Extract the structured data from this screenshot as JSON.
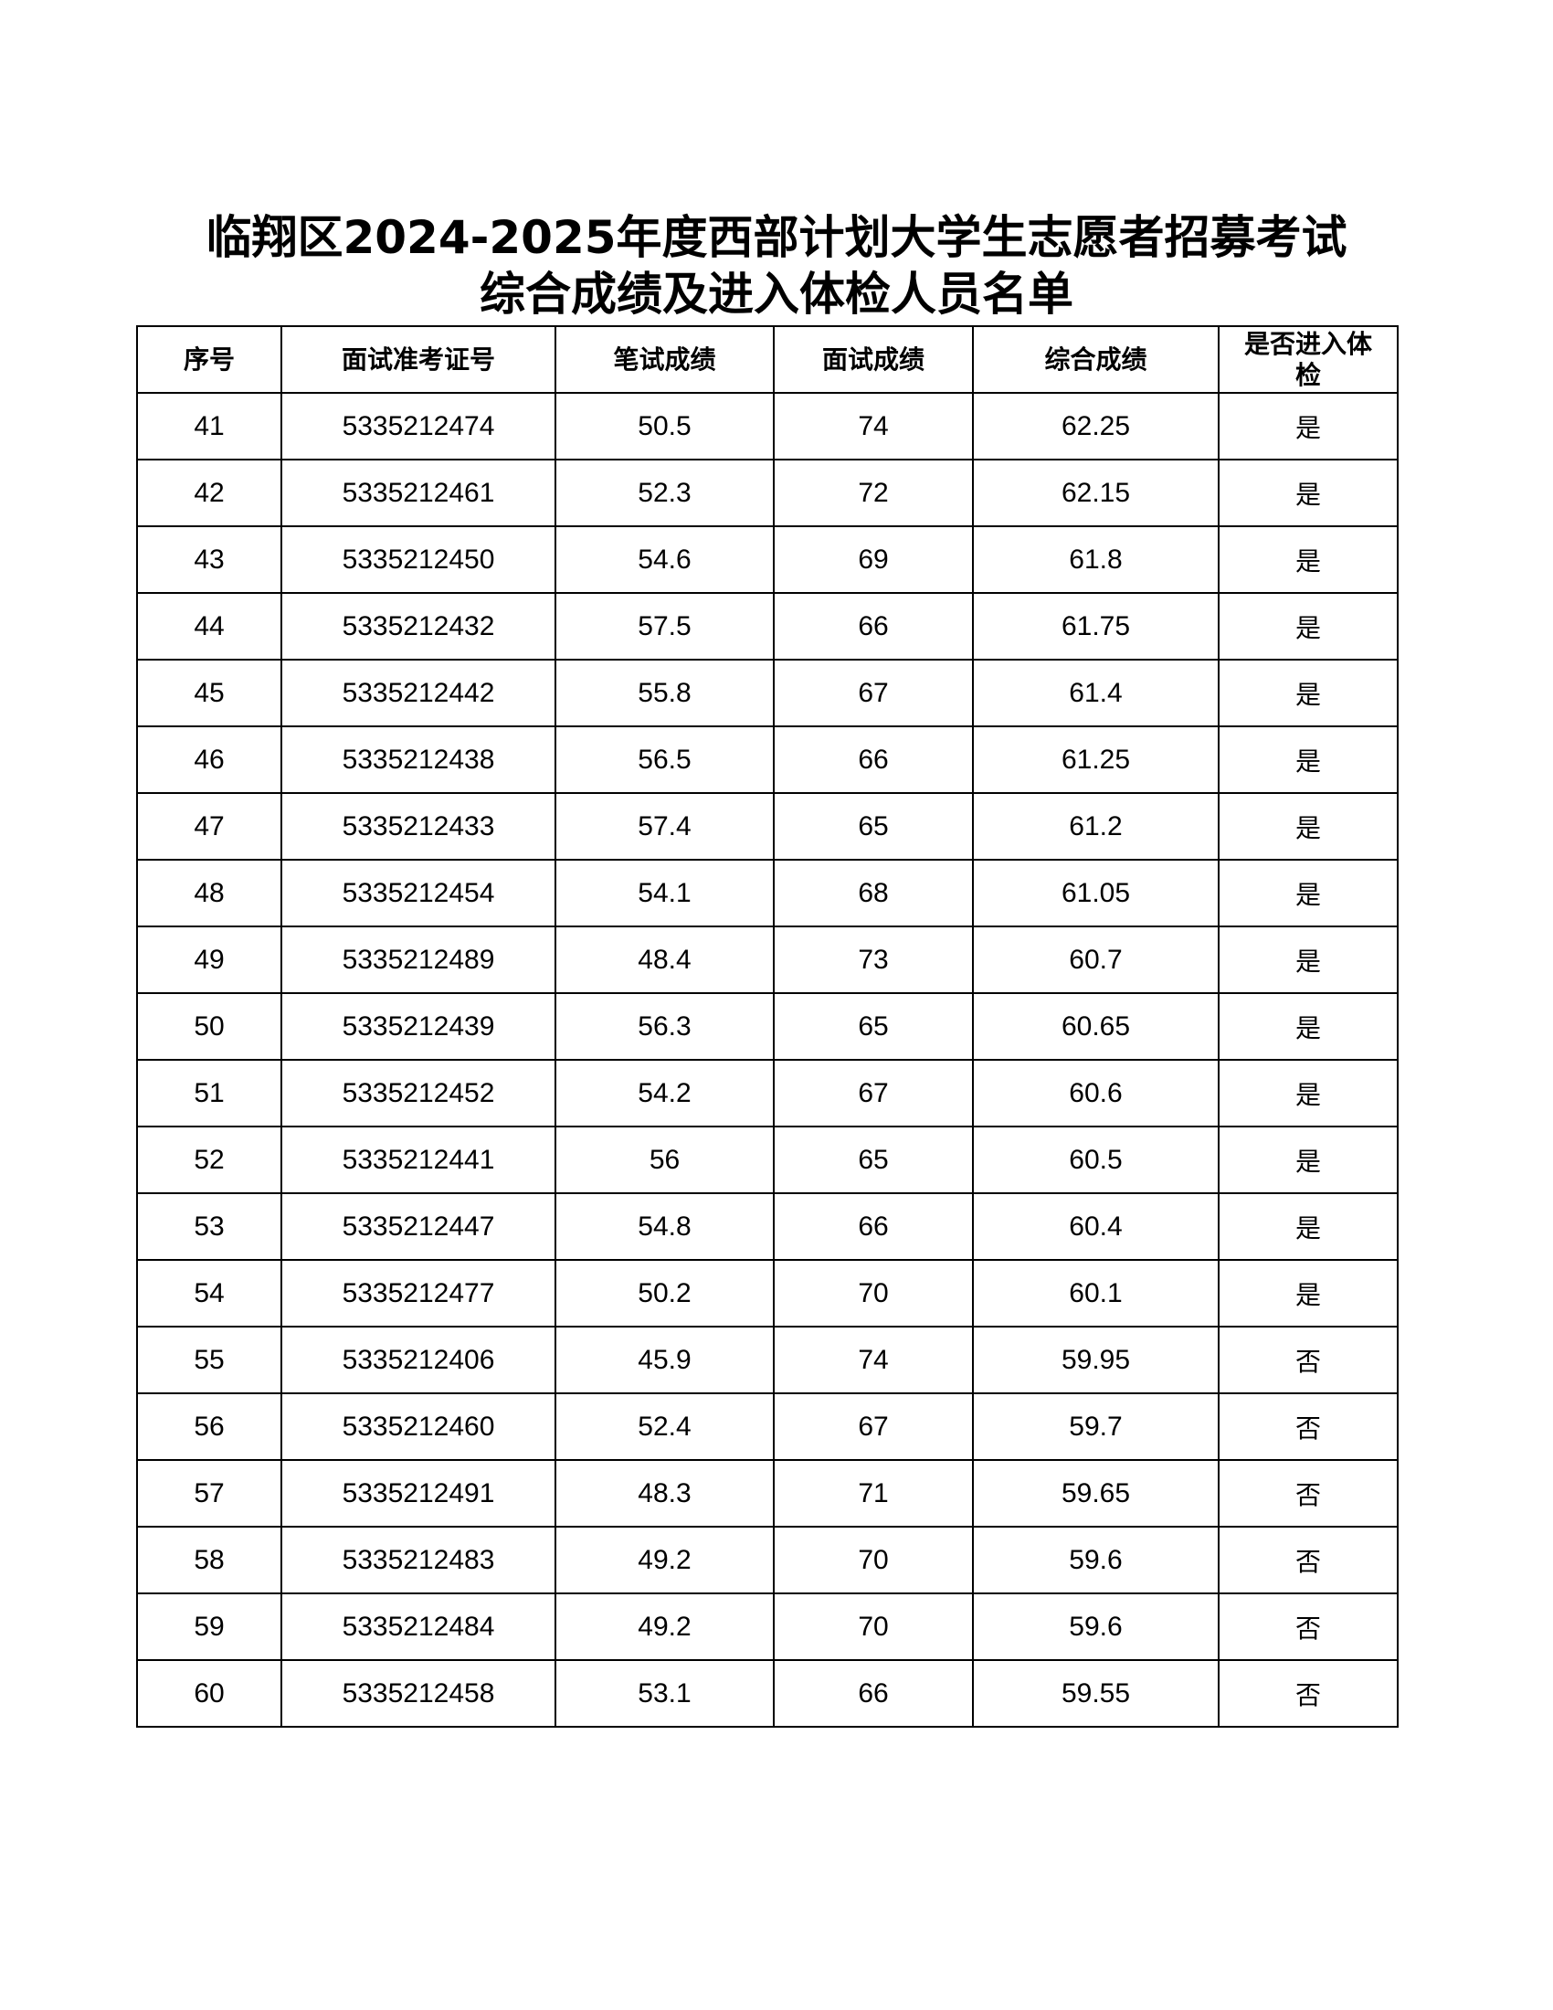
{
  "title": {
    "line1": "临翔区2024-2025年度西部计划大学生志愿者招募考试",
    "line2": "综合成绩及进入体检人员名单"
  },
  "table": {
    "headers": [
      "序号",
      "面试准考证号",
      "笔试成绩",
      "面试成绩",
      "综合成绩",
      "是否进入体检"
    ],
    "rows": [
      [
        "41",
        "5335212474",
        "50.5",
        "74",
        "62.25",
        "是"
      ],
      [
        "42",
        "5335212461",
        "52.3",
        "72",
        "62.15",
        "是"
      ],
      [
        "43",
        "5335212450",
        "54.6",
        "69",
        "61.8",
        "是"
      ],
      [
        "44",
        "5335212432",
        "57.5",
        "66",
        "61.75",
        "是"
      ],
      [
        "45",
        "5335212442",
        "55.8",
        "67",
        "61.4",
        "是"
      ],
      [
        "46",
        "5335212438",
        "56.5",
        "66",
        "61.25",
        "是"
      ],
      [
        "47",
        "5335212433",
        "57.4",
        "65",
        "61.2",
        "是"
      ],
      [
        "48",
        "5335212454",
        "54.1",
        "68",
        "61.05",
        "是"
      ],
      [
        "49",
        "5335212489",
        "48.4",
        "73",
        "60.7",
        "是"
      ],
      [
        "50",
        "5335212439",
        "56.3",
        "65",
        "60.65",
        "是"
      ],
      [
        "51",
        "5335212452",
        "54.2",
        "67",
        "60.6",
        "是"
      ],
      [
        "52",
        "5335212441",
        "56",
        "65",
        "60.5",
        "是"
      ],
      [
        "53",
        "5335212447",
        "54.8",
        "66",
        "60.4",
        "是"
      ],
      [
        "54",
        "5335212477",
        "50.2",
        "70",
        "60.1",
        "是"
      ],
      [
        "55",
        "5335212406",
        "45.9",
        "74",
        "59.95",
        "否"
      ],
      [
        "56",
        "5335212460",
        "52.4",
        "67",
        "59.7",
        "否"
      ],
      [
        "57",
        "5335212491",
        "48.3",
        "71",
        "59.65",
        "否"
      ],
      [
        "58",
        "5335212483",
        "49.2",
        "70",
        "59.6",
        "否"
      ],
      [
        "59",
        "5335212484",
        "49.2",
        "70",
        "59.6",
        "否"
      ],
      [
        "60",
        "5335212458",
        "53.1",
        "66",
        "59.55",
        "否"
      ]
    ]
  }
}
